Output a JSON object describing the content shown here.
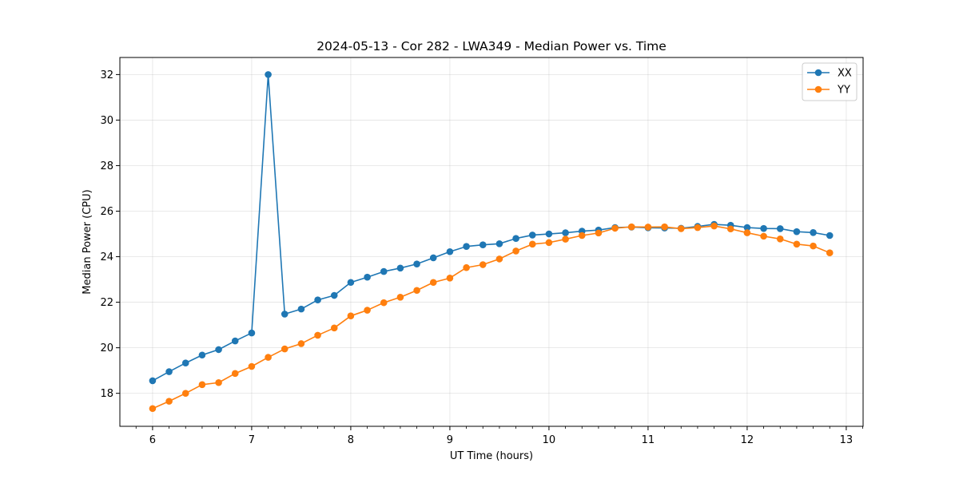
{
  "chart_data": {
    "type": "line",
    "title": "2024-05-13 - Cor 282 - LWA349 - Median Power vs. Time",
    "xlabel": "UT Time (hours)",
    "ylabel": "Median Power (CPU)",
    "xlim": [
      5.67,
      13.17
    ],
    "ylim": [
      16.55,
      32.75
    ],
    "x_ticks": [
      "6",
      "7",
      "8",
      "9",
      "10",
      "11",
      "12",
      "13"
    ],
    "y_ticks": [
      "18",
      "20",
      "22",
      "24",
      "26",
      "28",
      "30",
      "32"
    ],
    "grid": true,
    "legend_position": "top-right",
    "x": [
      6.0,
      6.1667,
      6.3333,
      6.5,
      6.6667,
      6.8333,
      7.0,
      7.1667,
      7.3333,
      7.5,
      7.6667,
      7.8333,
      8.0,
      8.1667,
      8.3333,
      8.5,
      8.6667,
      8.8333,
      9.0,
      9.1667,
      9.3333,
      9.5,
      9.6667,
      9.8333,
      10.0,
      10.1667,
      10.3333,
      10.5,
      10.6667,
      10.8333,
      11.0,
      11.1667,
      11.3333,
      11.5,
      11.6667,
      11.8333,
      12.0,
      12.1667,
      12.3333,
      12.5,
      12.6667,
      12.8333
    ],
    "series": [
      {
        "name": "XX",
        "color": "#1f77b4",
        "values": [
          18.55,
          18.95,
          19.33,
          19.68,
          19.92,
          20.3,
          20.65,
          32.0,
          21.48,
          21.7,
          22.1,
          22.3,
          22.87,
          23.1,
          23.35,
          23.5,
          23.68,
          23.95,
          24.22,
          24.45,
          24.52,
          24.57,
          24.8,
          24.95,
          25.0,
          25.05,
          25.12,
          25.17,
          25.28,
          25.3,
          25.27,
          25.26,
          25.25,
          25.33,
          25.42,
          25.38,
          25.28,
          25.24,
          25.23,
          25.1,
          25.06,
          24.93
        ]
      },
      {
        "name": "YY",
        "color": "#ff7f0e",
        "values": [
          17.33,
          17.65,
          18.0,
          18.38,
          18.47,
          18.87,
          19.18,
          19.58,
          19.95,
          20.18,
          20.55,
          20.87,
          21.4,
          21.65,
          21.98,
          22.22,
          22.52,
          22.87,
          23.06,
          23.52,
          23.65,
          23.9,
          24.25,
          24.55,
          24.62,
          24.77,
          24.93,
          25.04,
          25.25,
          25.31,
          25.3,
          25.31,
          25.23,
          25.28,
          25.35,
          25.22,
          25.05,
          24.9,
          24.78,
          24.55,
          24.47,
          24.17
        ]
      }
    ]
  }
}
